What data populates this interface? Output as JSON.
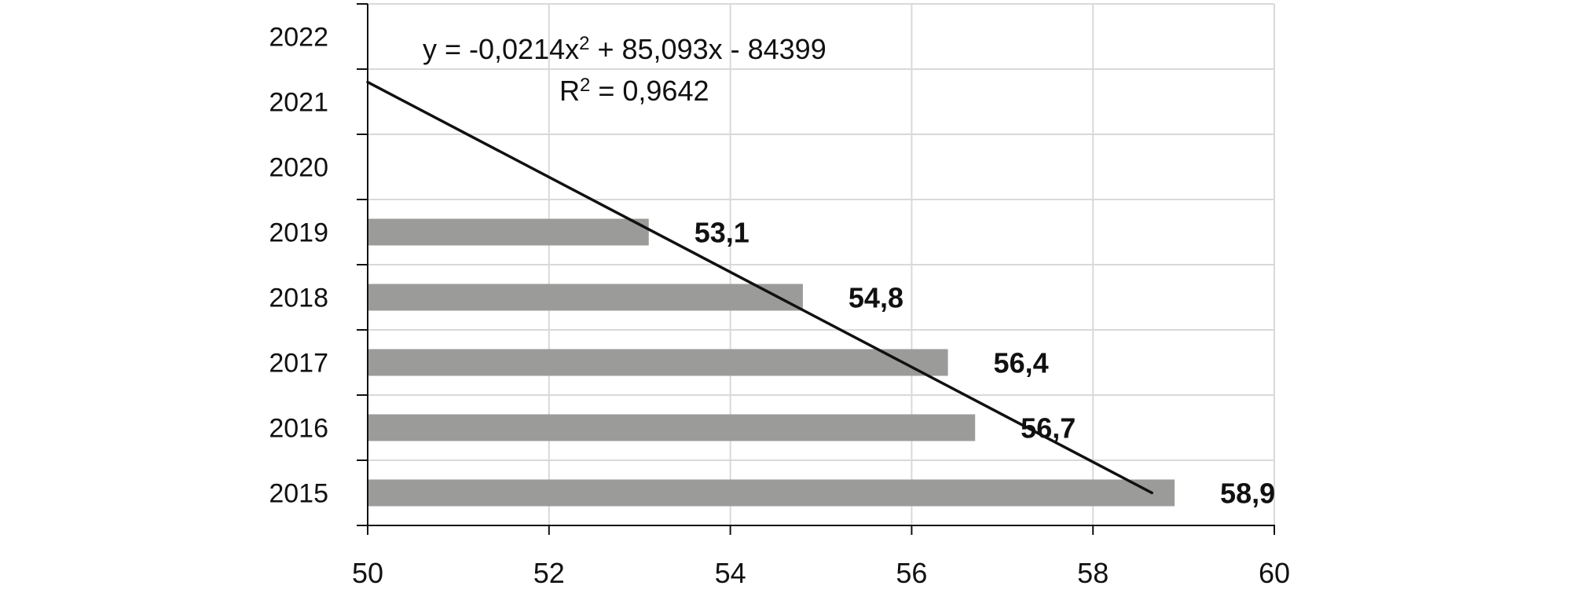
{
  "chart_data": {
    "type": "bar",
    "orientation": "horizontal",
    "categories": [
      "2015",
      "2016",
      "2017",
      "2018",
      "2019",
      "2020",
      "2021",
      "2022"
    ],
    "values": [
      58.9,
      56.7,
      56.4,
      54.8,
      53.1,
      null,
      null,
      null
    ],
    "value_labels": [
      "58,9",
      "56,7",
      "56,4",
      "54,8",
      "53,1",
      "",
      "",
      ""
    ],
    "xlim": [
      50,
      60
    ],
    "x_ticks": [
      50,
      52,
      54,
      56,
      58,
      60
    ],
    "x_tick_labels": [
      "50",
      "52",
      "54",
      "56",
      "58",
      "60"
    ],
    "title": "",
    "xlabel": "",
    "ylabel": "",
    "grid": true,
    "legend": "none",
    "trendline": {
      "type": "polynomial",
      "order": 2,
      "equation_text": "y = -0,0214x",
      "equation_exponent": "2",
      "equation_rest": " + 85,093x - 84399",
      "r2_prefix": "R",
      "r2_exponent": "2",
      "r2_rest": " = 0,9642",
      "start": {
        "category_index": 6.3,
        "value": 50.0
      },
      "end": {
        "category_index": 0.0,
        "value": 58.65
      }
    },
    "colors": {
      "bar": "#9b9b9a",
      "grid": "#d9d9d9",
      "axis": "#111111",
      "trendline": "#111111"
    }
  }
}
